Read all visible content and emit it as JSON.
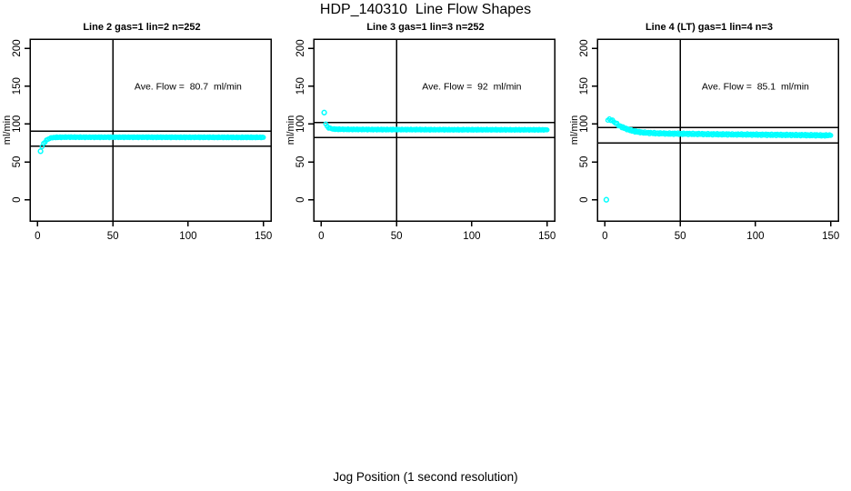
{
  "figure": {
    "title": "HDP_140310  Line Flow Shapes",
    "xlabel": "Jog Position (1 second resolution)",
    "background": "#ffffff",
    "foreground": "#000000",
    "marker_color": "#00ffff"
  },
  "chart_data": [
    {
      "type": "scatter",
      "title": "Line 2 gas=1 lin=2 n=252",
      "ylabel": "ml/min",
      "annotation": "Ave. Flow =  80.7  ml/min",
      "annotation_at": {
        "x": 100,
        "y": 150
      },
      "ave_flow": 80.7,
      "n": 252,
      "xlim": [
        -5,
        155
      ],
      "ylim": [
        -28,
        212
      ],
      "xticks": [
        0,
        50,
        100,
        150
      ],
      "yticks": [
        0,
        50,
        100,
        150,
        200
      ],
      "vline_x": 50,
      "hlines": [
        90.7,
        70.7
      ],
      "band_halfwidth": 0.7,
      "outliers": [
        [
          2,
          64
        ]
      ],
      "curve": [
        [
          3,
          70
        ],
        [
          4,
          74
        ],
        [
          5,
          76.5
        ],
        [
          6,
          78.5
        ],
        [
          7,
          80
        ],
        [
          8,
          81
        ],
        [
          9,
          81.5
        ],
        [
          10,
          82
        ],
        [
          12,
          82.3
        ],
        [
          15,
          82.4
        ],
        [
          20,
          82.6
        ],
        [
          30,
          82.5
        ],
        [
          40,
          82.5
        ],
        [
          50,
          82.5
        ],
        [
          70,
          82.5
        ],
        [
          90,
          82.4
        ],
        [
          110,
          82.4
        ],
        [
          130,
          82.3
        ],
        [
          150,
          82.3
        ]
      ]
    },
    {
      "type": "scatter",
      "title": "Line 3 gas=1 lin=3 n=252",
      "ylabel": "ml/min",
      "annotation": "Ave. Flow =  92  ml/min",
      "annotation_at": {
        "x": 100,
        "y": 150
      },
      "ave_flow": 92,
      "n": 252,
      "xlim": [
        -5,
        155
      ],
      "ylim": [
        -28,
        212
      ],
      "xticks": [
        0,
        50,
        100,
        150
      ],
      "yticks": [
        0,
        50,
        100,
        150,
        200
      ],
      "vline_x": 50,
      "hlines": [
        102,
        82
      ],
      "band_halfwidth": 0.7,
      "outliers": [
        [
          2,
          115
        ]
      ],
      "curve": [
        [
          3,
          100
        ],
        [
          4,
          96.5
        ],
        [
          5,
          95
        ],
        [
          6,
          94.2
        ],
        [
          7,
          93.7
        ],
        [
          8,
          93.4
        ],
        [
          10,
          93.1
        ],
        [
          12,
          93
        ],
        [
          15,
          92.9
        ],
        [
          20,
          92.8
        ],
        [
          30,
          92.7
        ],
        [
          40,
          92.6
        ],
        [
          50,
          92.6
        ],
        [
          70,
          92.5
        ],
        [
          90,
          92.4
        ],
        [
          110,
          92.4
        ],
        [
          130,
          92.3
        ],
        [
          150,
          92.3
        ]
      ]
    },
    {
      "type": "scatter",
      "title": "Line 4 (LT) gas=1 lin=4 n=3",
      "ylabel": "ml/min",
      "annotation": "Ave. Flow =  85.1  ml/min",
      "annotation_at": {
        "x": 100,
        "y": 150
      },
      "ave_flow": 85.1,
      "n": 3,
      "xlim": [
        -5,
        155
      ],
      "ylim": [
        -28,
        212
      ],
      "xticks": [
        0,
        50,
        100,
        150
      ],
      "yticks": [
        0,
        50,
        100,
        150,
        200
      ],
      "vline_x": 50,
      "hlines": [
        95.1,
        75.1
      ],
      "band_halfwidth": 1.3,
      "outliers": [
        [
          1,
          0
        ]
      ],
      "curve": [
        [
          2,
          105
        ],
        [
          3,
          106
        ],
        [
          4,
          105.5
        ],
        [
          5,
          104.5
        ],
        [
          6,
          103
        ],
        [
          7,
          101.5
        ],
        [
          8,
          100
        ],
        [
          9,
          98.5
        ],
        [
          10,
          97.3
        ],
        [
          12,
          95.3
        ],
        [
          14,
          93.7
        ],
        [
          16,
          92.3
        ],
        [
          18,
          91.2
        ],
        [
          20,
          90.2
        ],
        [
          22,
          89.5
        ],
        [
          25,
          88.8
        ],
        [
          28,
          88.3
        ],
        [
          32,
          87.9
        ],
        [
          36,
          87.6
        ],
        [
          40,
          87.4
        ],
        [
          45,
          87.2
        ],
        [
          50,
          87.1
        ],
        [
          60,
          86.8
        ],
        [
          70,
          86.5
        ],
        [
          80,
          86.3
        ],
        [
          90,
          86.1
        ],
        [
          100,
          85.9
        ],
        [
          110,
          85.7
        ],
        [
          120,
          85.5
        ],
        [
          130,
          85.3
        ],
        [
          140,
          85.1
        ],
        [
          150,
          84.9
        ]
      ]
    }
  ]
}
